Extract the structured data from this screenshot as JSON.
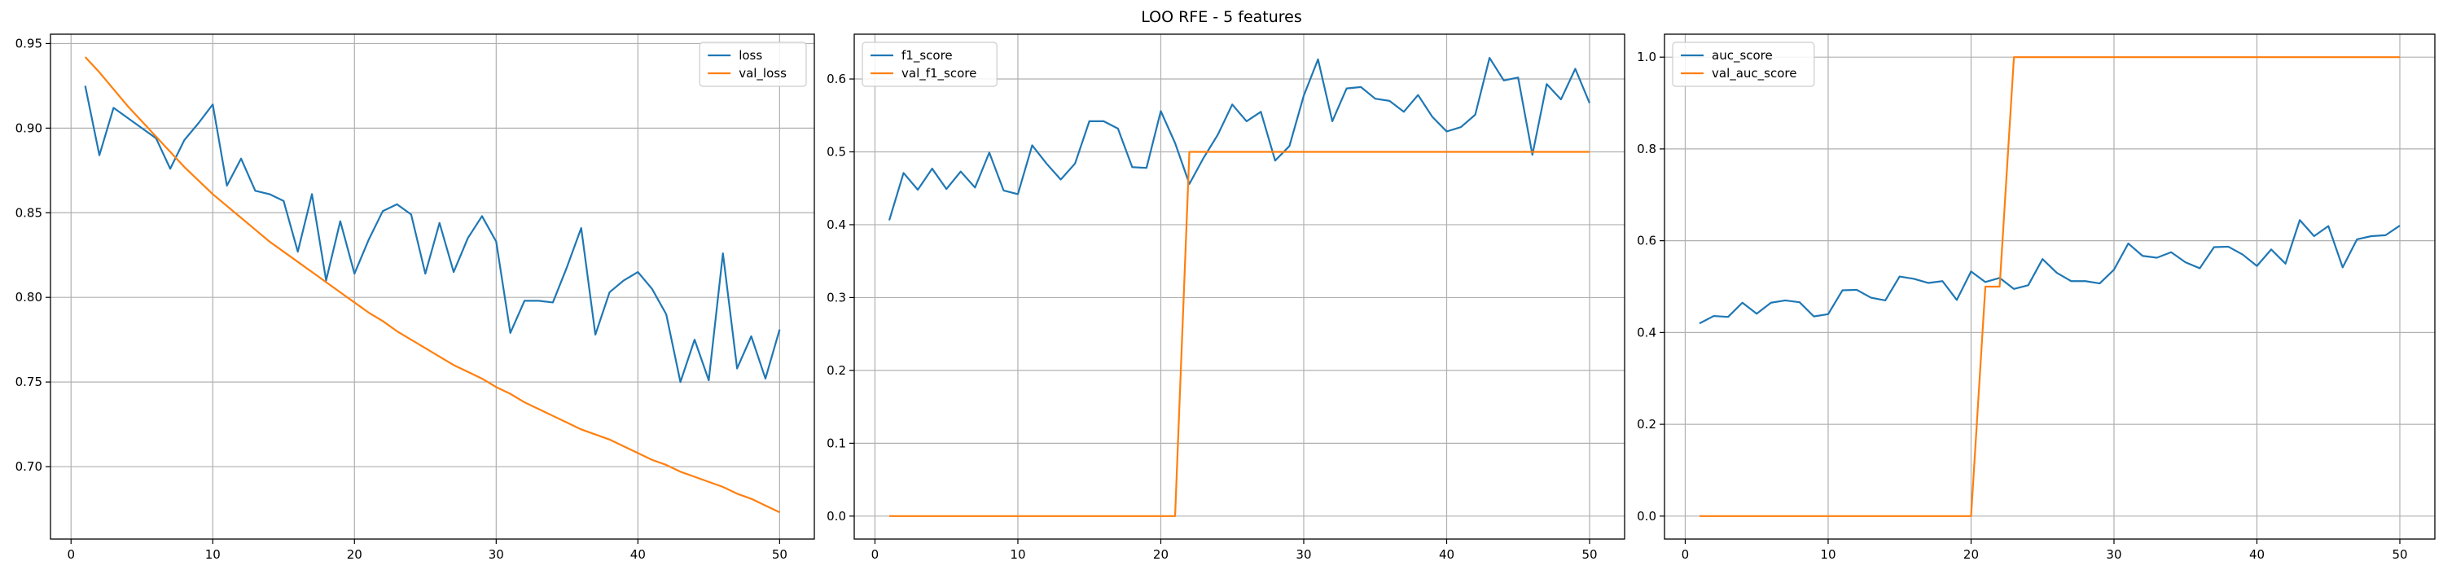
{
  "figure": {
    "title": "LOO RFE - 5 features"
  },
  "colors": {
    "series1": "#1f77b4",
    "series2": "#ff7f0e",
    "grid": "#b0b0b0",
    "axis": "#000000"
  },
  "chart_data": [
    {
      "type": "line",
      "title": "",
      "xlabel": "",
      "ylabel": "",
      "xlim": [
        -1.45,
        52.45
      ],
      "ylim": [
        0.6572,
        0.9555
      ],
      "xticks": [
        0,
        10,
        20,
        30,
        40,
        50
      ],
      "yticks": [
        0.7,
        0.75,
        0.8,
        0.85,
        0.9,
        0.95
      ],
      "ytick_labels": [
        "0.70",
        "0.75",
        "0.80",
        "0.85",
        "0.90",
        "0.95"
      ],
      "grid": true,
      "legend": "top-right",
      "x": [
        1,
        2,
        3,
        4,
        5,
        6,
        7,
        8,
        9,
        10,
        11,
        12,
        13,
        14,
        15,
        16,
        17,
        18,
        19,
        20,
        21,
        22,
        23,
        24,
        25,
        26,
        27,
        28,
        29,
        30,
        31,
        32,
        33,
        34,
        35,
        36,
        37,
        38,
        39,
        40,
        41,
        42,
        43,
        44,
        45,
        46,
        47,
        48,
        49,
        50
      ],
      "series": [
        {
          "name": "loss",
          "color": "#1f77b4",
          "values": [
            0.925,
            0.884,
            0.912,
            0.906,
            0.9,
            0.894,
            0.876,
            0.893,
            0.903,
            0.914,
            0.866,
            0.882,
            0.863,
            0.861,
            0.857,
            0.827,
            0.861,
            0.81,
            0.845,
            0.814,
            0.834,
            0.851,
            0.855,
            0.849,
            0.814,
            0.844,
            0.815,
            0.835,
            0.848,
            0.833,
            0.779,
            0.798,
            0.798,
            0.797,
            0.818,
            0.841,
            0.778,
            0.803,
            0.81,
            0.815,
            0.805,
            0.79,
            0.75,
            0.775,
            0.751,
            0.826,
            0.758,
            0.777,
            0.752,
            0.781
          ]
        },
        {
          "name": "val_loss",
          "color": "#ff7f0e",
          "values": [
            0.942,
            0.933,
            0.923,
            0.913,
            0.904,
            0.895,
            0.886,
            0.877,
            0.869,
            0.861,
            0.854,
            0.847,
            0.84,
            0.833,
            0.827,
            0.821,
            0.815,
            0.809,
            0.803,
            0.797,
            0.791,
            0.786,
            0.78,
            0.775,
            0.77,
            0.765,
            0.76,
            0.756,
            0.752,
            0.747,
            0.743,
            0.738,
            0.734,
            0.73,
            0.726,
            0.722,
            0.719,
            0.716,
            0.712,
            0.708,
            0.704,
            0.701,
            0.697,
            0.694,
            0.691,
            0.688,
            0.684,
            0.681,
            0.677,
            0.673
          ]
        }
      ]
    },
    {
      "type": "line",
      "title": "",
      "xlabel": "",
      "ylabel": "",
      "xlim": [
        -1.45,
        52.45
      ],
      "ylim": [
        -0.0315,
        0.6615
      ],
      "xticks": [
        0,
        10,
        20,
        30,
        40,
        50
      ],
      "yticks": [
        0.0,
        0.1,
        0.2,
        0.3,
        0.4,
        0.5,
        0.6
      ],
      "ytick_labels": [
        "0.0",
        "0.1",
        "0.2",
        "0.3",
        "0.4",
        "0.5",
        "0.6"
      ],
      "grid": true,
      "legend": "top-left",
      "x": [
        1,
        2,
        3,
        4,
        5,
        6,
        7,
        8,
        9,
        10,
        11,
        12,
        13,
        14,
        15,
        16,
        17,
        18,
        19,
        20,
        21,
        22,
        23,
        24,
        25,
        26,
        27,
        28,
        29,
        30,
        31,
        32,
        33,
        34,
        35,
        36,
        37,
        38,
        39,
        40,
        41,
        42,
        43,
        44,
        45,
        46,
        47,
        48,
        49,
        50
      ],
      "series": [
        {
          "name": "f1_score",
          "color": "#1f77b4",
          "values": [
            0.406,
            0.471,
            0.448,
            0.477,
            0.449,
            0.473,
            0.451,
            0.499,
            0.447,
            0.442,
            0.509,
            0.484,
            0.462,
            0.484,
            0.542,
            0.542,
            0.532,
            0.479,
            0.478,
            0.556,
            0.512,
            0.456,
            0.492,
            0.524,
            0.565,
            0.542,
            0.555,
            0.488,
            0.508,
            0.577,
            0.627,
            0.542,
            0.587,
            0.589,
            0.573,
            0.57,
            0.555,
            0.578,
            0.548,
            0.528,
            0.534,
            0.551,
            0.629,
            0.598,
            0.602,
            0.496,
            0.593,
            0.572,
            0.614,
            0.567
          ]
        },
        {
          "name": "val_f1_score",
          "color": "#ff7f0e",
          "values": [
            0,
            0,
            0,
            0,
            0,
            0,
            0,
            0,
            0,
            0,
            0,
            0,
            0,
            0,
            0,
            0,
            0,
            0,
            0,
            0,
            0,
            0.5,
            0.5,
            0.5,
            0.5,
            0.5,
            0.5,
            0.5,
            0.5,
            0.5,
            0.5,
            0.5,
            0.5,
            0.5,
            0.5,
            0.5,
            0.5,
            0.5,
            0.5,
            0.5,
            0.5,
            0.5,
            0.5,
            0.5,
            0.5,
            0.5,
            0.5,
            0.5,
            0.5,
            0.5
          ]
        }
      ]
    },
    {
      "type": "line",
      "title": "",
      "xlabel": "",
      "ylabel": "",
      "xlim": [
        -1.45,
        52.45
      ],
      "ylim": [
        -0.05,
        1.05
      ],
      "xticks": [
        0,
        10,
        20,
        30,
        40,
        50
      ],
      "yticks": [
        0.0,
        0.2,
        0.4,
        0.6,
        0.8,
        1.0
      ],
      "ytick_labels": [
        "0.0",
        "0.2",
        "0.4",
        "0.6",
        "0.8",
        "1.0"
      ],
      "grid": true,
      "legend": "top-left",
      "x": [
        1,
        2,
        3,
        4,
        5,
        6,
        7,
        8,
        9,
        10,
        11,
        12,
        13,
        14,
        15,
        16,
        17,
        18,
        19,
        20,
        21,
        22,
        23,
        24,
        25,
        26,
        27,
        28,
        29,
        30,
        31,
        32,
        33,
        34,
        35,
        36,
        37,
        38,
        39,
        40,
        41,
        42,
        43,
        44,
        45,
        46,
        47,
        48,
        49,
        50
      ],
      "series": [
        {
          "name": "auc_score",
          "color": "#1f77b4",
          "values": [
            0.42,
            0.436,
            0.434,
            0.465,
            0.441,
            0.465,
            0.47,
            0.466,
            0.435,
            0.44,
            0.492,
            0.493,
            0.476,
            0.47,
            0.522,
            0.517,
            0.508,
            0.512,
            0.471,
            0.533,
            0.51,
            0.519,
            0.495,
            0.503,
            0.56,
            0.53,
            0.512,
            0.512,
            0.507,
            0.537,
            0.594,
            0.567,
            0.563,
            0.575,
            0.553,
            0.54,
            0.586,
            0.587,
            0.57,
            0.545,
            0.581,
            0.55,
            0.645,
            0.61,
            0.632,
            0.542,
            0.603,
            0.61,
            0.612,
            0.633
          ]
        },
        {
          "name": "val_auc_score",
          "color": "#ff7f0e",
          "values": [
            0,
            0,
            0,
            0,
            0,
            0,
            0,
            0,
            0,
            0,
            0,
            0,
            0,
            0,
            0,
            0,
            0,
            0,
            0,
            0,
            0.5,
            0.5,
            1,
            1,
            1,
            1,
            1,
            1,
            1,
            1,
            1,
            1,
            1,
            1,
            1,
            1,
            1,
            1,
            1,
            1,
            1,
            1,
            1,
            1,
            1,
            1,
            1,
            1,
            1,
            1
          ]
        }
      ]
    }
  ]
}
